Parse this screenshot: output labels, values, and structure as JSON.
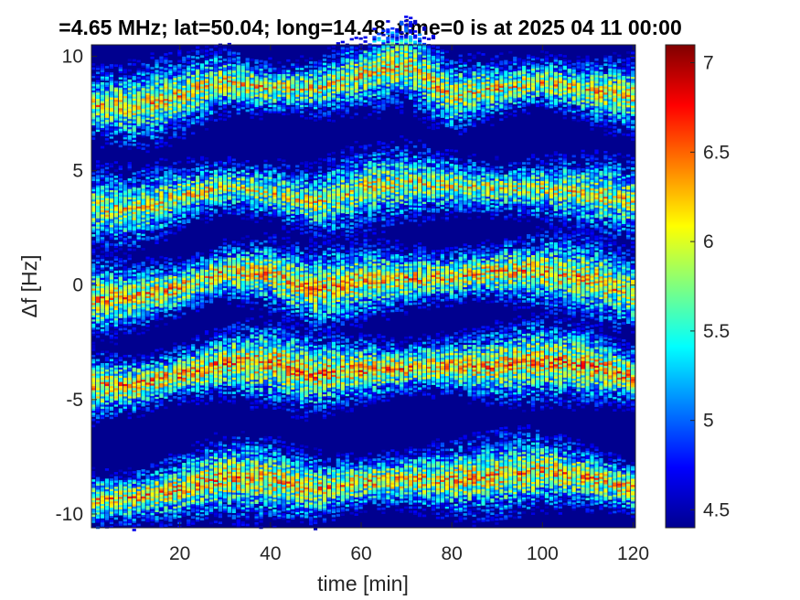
{
  "chart_data": {
    "type": "heatmap",
    "title": "=4.65 MHz;  lat=50.04; long=14.48, time=0 is at 2025 04 11 00:00",
    "xlabel": "time [min]",
    "ylabel": "Δf [Hz]",
    "xlim": [
      0.5,
      120.5
    ],
    "ylim": [
      -10.6,
      10.5
    ],
    "xticks": [
      20,
      40,
      60,
      80,
      100,
      120
    ],
    "xtick_labels": [
      "20",
      "40",
      "60",
      "80",
      "100",
      "120"
    ],
    "yticks": [
      10,
      5,
      0,
      -5,
      -10
    ],
    "ytick_labels": [
      "10",
      "5",
      "0",
      "-5",
      "-10"
    ],
    "colorbar": {
      "range": [
        4.4,
        7.1
      ],
      "ticks": [
        7,
        6.5,
        6,
        5.5,
        5,
        4.5
      ],
      "tick_labels": [
        "7",
        "6.5",
        "6",
        "5.5",
        "5",
        "4.5"
      ],
      "colormap": "jet"
    },
    "background_value": 4.45,
    "series": [
      {
        "center_time_min": [
          0,
          10,
          20,
          30,
          40,
          50,
          60,
          70,
          80,
          90,
          100,
          110,
          120
        ],
        "center_hz": [
          7.9,
          7.8,
          8.3,
          8.9,
          8.6,
          8.6,
          9.2,
          9.7,
          8.3,
          8.6,
          8.9,
          8.5,
          8.3
        ],
        "peak_value": 6.7
      },
      {
        "center_time_min": [
          0,
          10,
          20,
          30,
          40,
          50,
          60,
          70,
          80,
          90,
          100,
          110,
          120
        ],
        "center_hz": [
          3.4,
          3.3,
          3.9,
          4.3,
          4.1,
          3.6,
          4.2,
          4.5,
          4.4,
          4.2,
          4.2,
          4.0,
          3.7
        ],
        "peak_value": 6.6
      },
      {
        "center_time_min": [
          0,
          10,
          20,
          30,
          40,
          50,
          60,
          70,
          80,
          90,
          100,
          110,
          120
        ],
        "center_hz": [
          -0.6,
          -0.5,
          -0.1,
          0.6,
          0.5,
          -0.2,
          0.2,
          0.3,
          0.4,
          0.6,
          0.6,
          0.3,
          -0.3
        ],
        "peak_value": 6.8
      },
      {
        "center_time_min": [
          0,
          10,
          20,
          30,
          40,
          50,
          60,
          70,
          80,
          90,
          100,
          110,
          120
        ],
        "center_hz": [
          -4.4,
          -4.4,
          -3.9,
          -3.4,
          -3.4,
          -3.9,
          -3.7,
          -3.6,
          -3.5,
          -3.5,
          -3.3,
          -3.5,
          -4.0
        ],
        "peak_value": 6.9
      },
      {
        "center_time_min": [
          0,
          10,
          20,
          30,
          40,
          50,
          60,
          70,
          80,
          90,
          100,
          110,
          120
        ],
        "center_hz": [
          -9.4,
          -9.3,
          -8.9,
          -8.4,
          -8.5,
          -8.9,
          -8.6,
          -8.5,
          -8.5,
          -8.3,
          -8.1,
          -8.4,
          -8.9
        ],
        "peak_value": 6.8
      }
    ]
  }
}
